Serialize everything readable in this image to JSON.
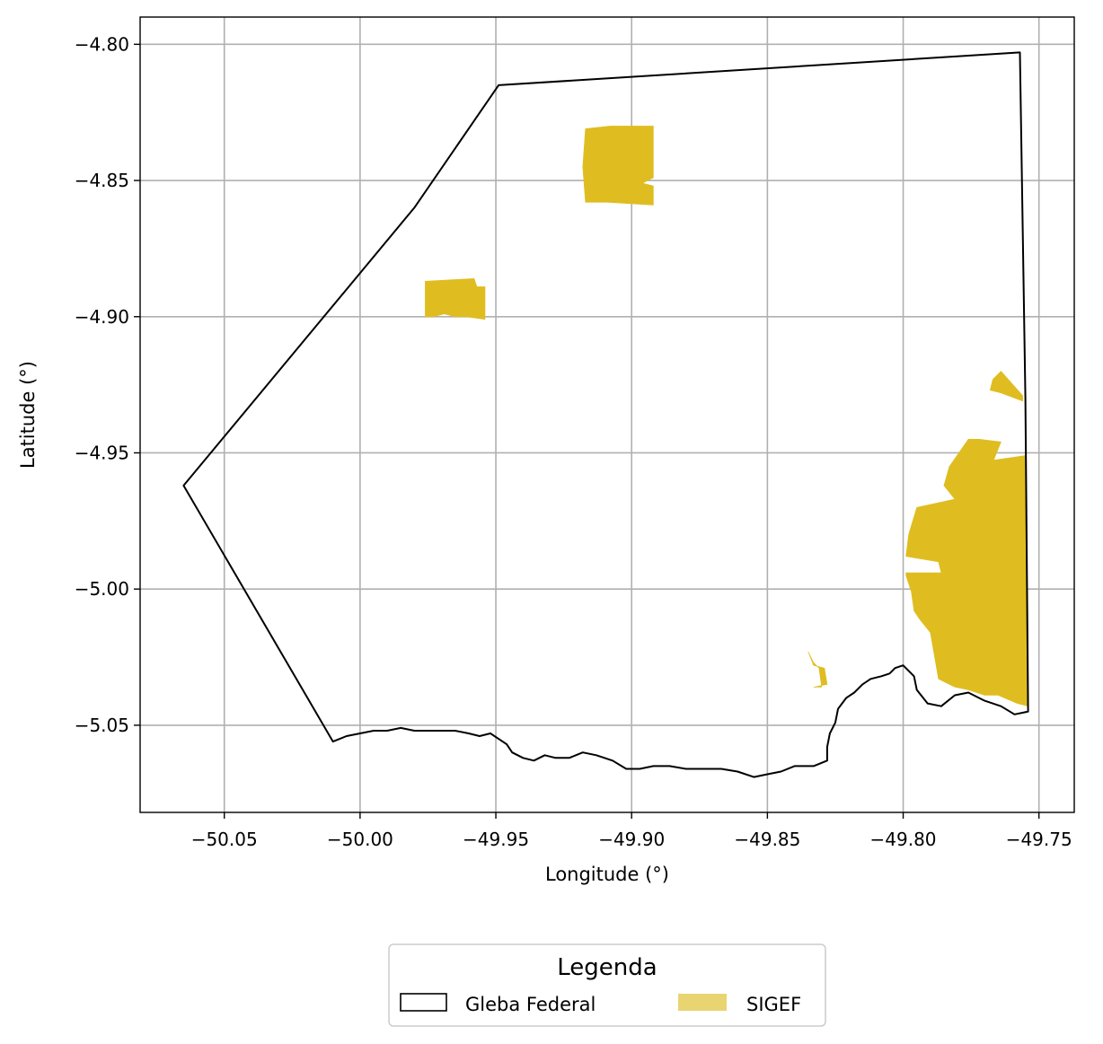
{
  "chart_data": {
    "type": "map",
    "xlabel": "Longitude (°)",
    "ylabel": "Latitude (°)",
    "xlim": [
      -50.081,
      -49.737
    ],
    "ylim": [
      -5.082,
      -4.79
    ],
    "grid": true,
    "x_ticks": [
      -50.05,
      -50.0,
      -49.95,
      -49.9,
      -49.85,
      -49.8,
      -49.75
    ],
    "x_tick_labels": [
      "−50.05",
      "−50.00",
      "−49.95",
      "−49.90",
      "−49.85",
      "−49.80",
      "−49.75"
    ],
    "y_ticks": [
      -4.8,
      -4.85,
      -4.9,
      -4.95,
      -5.0,
      -5.05
    ],
    "y_tick_labels": [
      "−4.80",
      "−4.85",
      "−4.90",
      "−4.95",
      "−5.00",
      "−5.05"
    ],
    "legend": {
      "title": "Legenda",
      "placement": "bottom-center",
      "entries": [
        {
          "label": "Gleba Federal",
          "style": "outline",
          "color": "#000000"
        },
        {
          "label": "SIGEF",
          "style": "fill",
          "color": "#e9d472"
        }
      ]
    },
    "layers": [
      {
        "name": "Gleba Federal",
        "style": "outline",
        "color": "#000000",
        "polygon": [
          [
            -50.065,
            -4.962
          ],
          [
            -49.98,
            -4.86
          ],
          [
            -49.949,
            -4.815
          ],
          [
            -49.757,
            -4.803
          ],
          [
            -49.755,
            -4.93
          ],
          [
            -49.754,
            -5.045
          ],
          [
            -49.759,
            -5.046
          ],
          [
            -49.764,
            -5.043
          ],
          [
            -49.77,
            -5.041
          ],
          [
            -49.776,
            -5.038
          ],
          [
            -49.781,
            -5.039
          ],
          [
            -49.786,
            -5.043
          ],
          [
            -49.791,
            -5.042
          ],
          [
            -49.795,
            -5.037
          ],
          [
            -49.796,
            -5.032
          ],
          [
            -49.8,
            -5.028
          ],
          [
            -49.803,
            -5.029
          ],
          [
            -49.805,
            -5.031
          ],
          [
            -49.808,
            -5.032
          ],
          [
            -49.812,
            -5.033
          ],
          [
            -49.815,
            -5.035
          ],
          [
            -49.818,
            -5.038
          ],
          [
            -49.821,
            -5.04
          ],
          [
            -49.824,
            -5.044
          ],
          [
            -49.825,
            -5.049
          ],
          [
            -49.827,
            -5.053
          ],
          [
            -49.828,
            -5.058
          ],
          [
            -49.828,
            -5.063
          ],
          [
            -49.833,
            -5.065
          ],
          [
            -49.84,
            -5.065
          ],
          [
            -49.845,
            -5.067
          ],
          [
            -49.85,
            -5.068
          ],
          [
            -49.855,
            -5.069
          ],
          [
            -49.861,
            -5.067
          ],
          [
            -49.867,
            -5.066
          ],
          [
            -49.873,
            -5.066
          ],
          [
            -49.88,
            -5.066
          ],
          [
            -49.886,
            -5.065
          ],
          [
            -49.892,
            -5.065
          ],
          [
            -49.897,
            -5.066
          ],
          [
            -49.902,
            -5.066
          ],
          [
            -49.907,
            -5.063
          ],
          [
            -49.913,
            -5.061
          ],
          [
            -49.918,
            -5.06
          ],
          [
            -49.923,
            -5.062
          ],
          [
            -49.928,
            -5.062
          ],
          [
            -49.932,
            -5.061
          ],
          [
            -49.936,
            -5.063
          ],
          [
            -49.94,
            -5.062
          ],
          [
            -49.944,
            -5.06
          ],
          [
            -49.946,
            -5.057
          ],
          [
            -49.949,
            -5.055
          ],
          [
            -49.952,
            -5.053
          ],
          [
            -49.956,
            -5.054
          ],
          [
            -49.96,
            -5.053
          ],
          [
            -49.965,
            -5.052
          ],
          [
            -49.97,
            -5.052
          ],
          [
            -49.975,
            -5.052
          ],
          [
            -49.98,
            -5.052
          ],
          [
            -49.985,
            -5.051
          ],
          [
            -49.99,
            -5.052
          ],
          [
            -49.995,
            -5.052
          ],
          [
            -50.0,
            -5.053
          ],
          [
            -50.005,
            -5.054
          ],
          [
            -50.01,
            -5.056
          ]
        ]
      },
      {
        "name": "SIGEF",
        "style": "fill",
        "color": "#dfbd20",
        "polygons": [
          [
            [
              -49.917,
              -4.831
            ],
            [
              -49.908,
              -4.83
            ],
            [
              -49.892,
              -4.83
            ],
            [
              -49.892,
              -4.849
            ],
            [
              -49.896,
              -4.851
            ],
            [
              -49.892,
              -4.852
            ],
            [
              -49.892,
              -4.859
            ],
            [
              -49.909,
              -4.858
            ],
            [
              -49.917,
              -4.858
            ],
            [
              -49.918,
              -4.845
            ]
          ],
          [
            [
              -49.976,
              -4.887
            ],
            [
              -49.958,
              -4.886
            ],
            [
              -49.957,
              -4.889
            ],
            [
              -49.954,
              -4.889
            ],
            [
              -49.954,
              -4.901
            ],
            [
              -49.961,
              -4.9
            ],
            [
              -49.965,
              -4.9
            ],
            [
              -49.969,
              -4.899
            ],
            [
              -49.973,
              -4.9
            ],
            [
              -49.976,
              -4.9
            ]
          ],
          [
            [
              -49.764,
              -4.92
            ],
            [
              -49.756,
              -4.929
            ],
            [
              -49.756,
              -4.931
            ],
            [
              -49.764,
              -4.928
            ],
            [
              -49.768,
              -4.927
            ],
            [
              -49.767,
              -4.923
            ]
          ],
          [
            [
              -49.772,
              -4.945
            ],
            [
              -49.764,
              -4.946
            ],
            [
              -49.768,
              -4.956
            ],
            [
              -49.783,
              -4.955
            ],
            [
              -49.776,
              -4.945
            ]
          ],
          [
            [
              -49.783,
              -4.955
            ],
            [
              -49.755,
              -4.951
            ],
            [
              -49.754,
              -5.043
            ],
            [
              -49.758,
              -5.042
            ],
            [
              -49.765,
              -5.039
            ],
            [
              -49.77,
              -5.039
            ],
            [
              -49.776,
              -5.037
            ],
            [
              -49.781,
              -5.036
            ],
            [
              -49.787,
              -5.033
            ],
            [
              -49.79,
              -5.016
            ],
            [
              -49.794,
              -5.011
            ],
            [
              -49.796,
              -5.008
            ],
            [
              -49.797,
              -5.001
            ],
            [
              -49.799,
              -4.995
            ],
            [
              -49.799,
              -4.994
            ],
            [
              -49.786,
              -4.994
            ],
            [
              -49.787,
              -4.99
            ],
            [
              -49.799,
              -4.988
            ],
            [
              -49.798,
              -4.98
            ],
            [
              -49.795,
              -4.97
            ],
            [
              -49.781,
              -4.967
            ],
            [
              -49.785,
              -4.962
            ]
          ],
          [
            [
              -49.835,
              -5.023
            ],
            [
              -49.833,
              -5.027
            ],
            [
              -49.831,
              -5.029
            ],
            [
              -49.83,
              -5.036
            ],
            [
              -49.833,
              -5.036
            ],
            [
              -49.828,
              -5.035
            ],
            [
              -49.829,
              -5.029
            ],
            [
              -49.833,
              -5.028
            ]
          ]
        ]
      }
    ]
  }
}
